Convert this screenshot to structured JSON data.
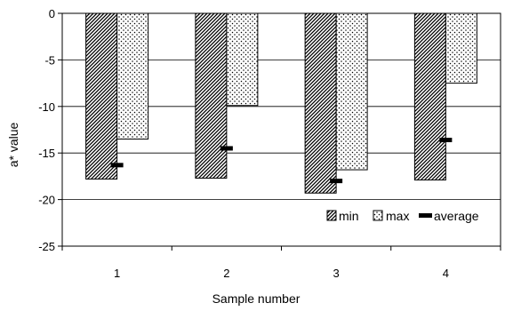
{
  "chart_data": {
    "type": "bar",
    "categories": [
      "1",
      "2",
      "3",
      "4"
    ],
    "series": [
      {
        "name": "min",
        "values": [
          -17.8,
          -17.7,
          -19.3,
          -17.9
        ],
        "pattern": "diagonal-hatch",
        "color": "#000000"
      },
      {
        "name": "max",
        "values": [
          -13.5,
          -9.9,
          -16.8,
          -7.5
        ],
        "pattern": "dots",
        "color": "#000000"
      },
      {
        "name": "average",
        "values": [
          -16.3,
          -14.5,
          -18.0,
          -13.6
        ],
        "marker": "dash",
        "color": "#000000"
      }
    ],
    "xlabel": "Sample number",
    "ylabel": "a* value",
    "ylim": [
      -25,
      0
    ],
    "yticks": [
      "0",
      "-5",
      "-10",
      "-15",
      "-20",
      "-25"
    ],
    "grid": true,
    "legend_position": "bottom-right"
  }
}
